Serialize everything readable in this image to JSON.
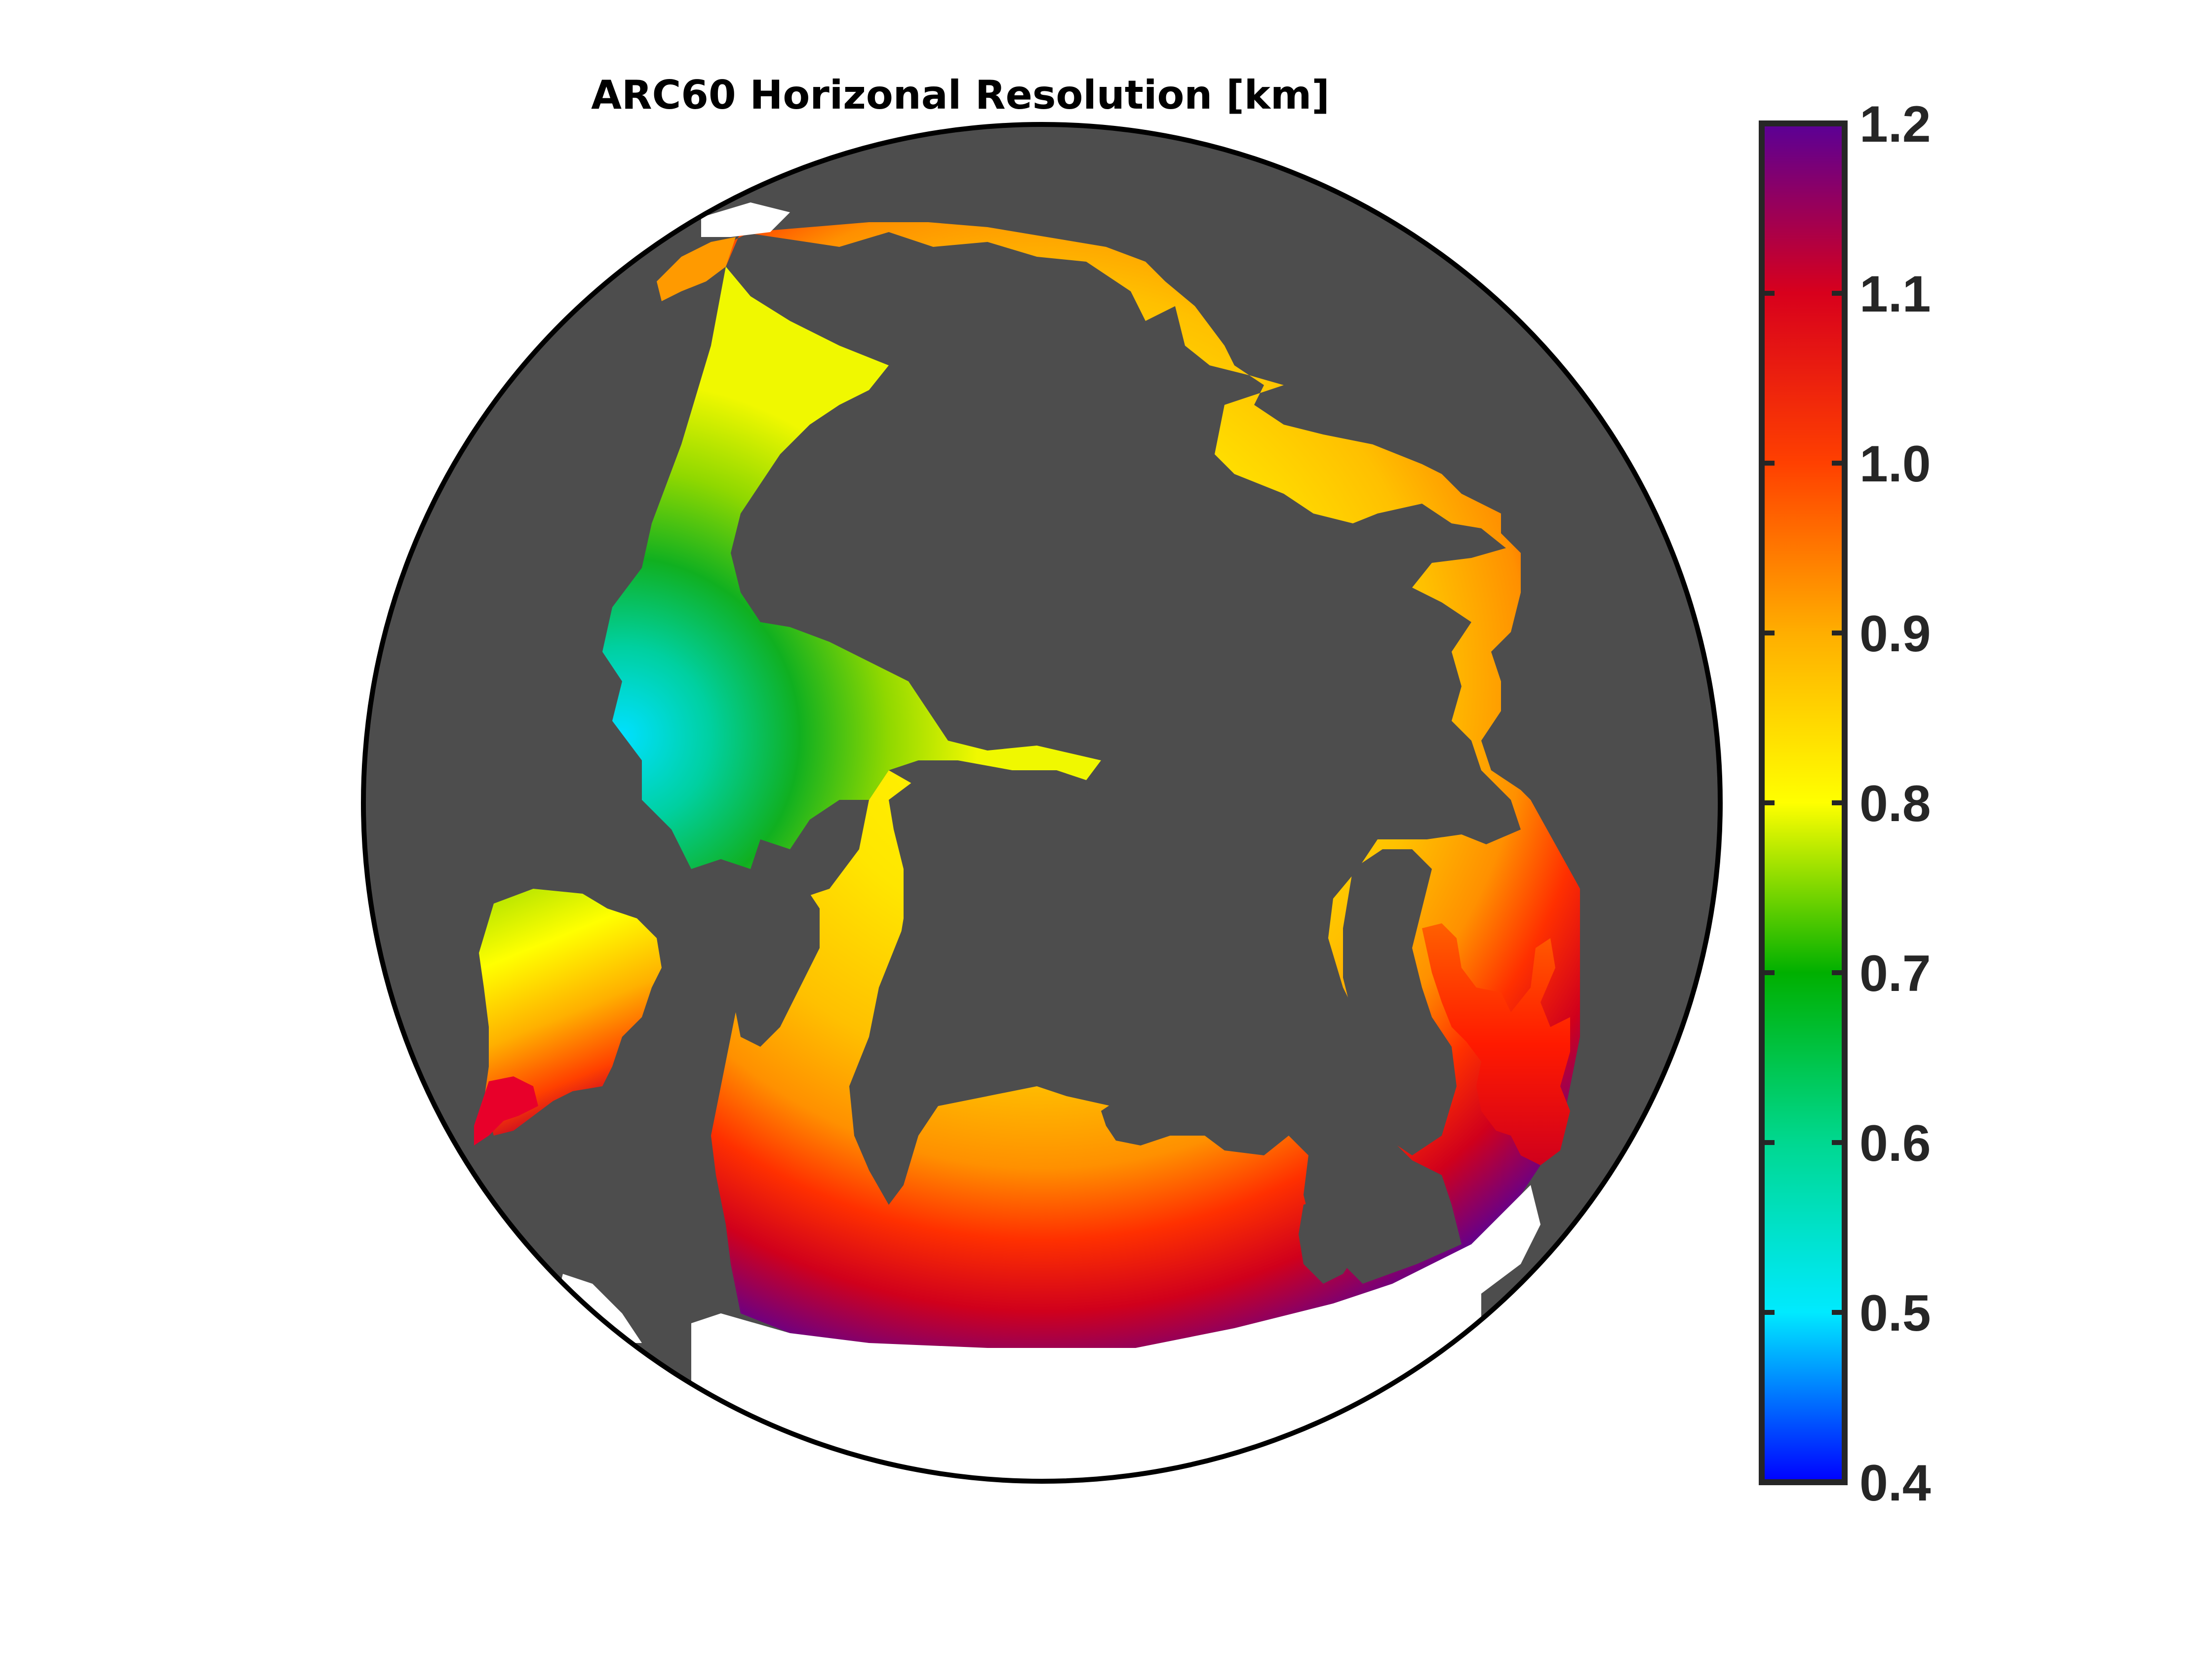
{
  "title": "ARC60 Horizonal Resolution [km]",
  "colors": {
    "land": "#4d4d4d",
    "outside_domain": "#ffffff",
    "frame": "#000000",
    "tick_text": "#262626"
  },
  "colorbar": {
    "min": 0.4,
    "max": 1.2,
    "ticks": [
      {
        "value": 0.4,
        "label": "0.4"
      },
      {
        "value": 0.5,
        "label": "0.5"
      },
      {
        "value": 0.6,
        "label": "0.6"
      },
      {
        "value": 0.7,
        "label": "0.7"
      },
      {
        "value": 0.8,
        "label": "0.8"
      },
      {
        "value": 0.9,
        "label": "0.9"
      },
      {
        "value": 1.0,
        "label": "1.0"
      },
      {
        "value": 1.1,
        "label": "1.1"
      },
      {
        "value": 1.2,
        "label": "1.2"
      }
    ],
    "stops": [
      {
        "value": 0.4,
        "color": "#0000ff"
      },
      {
        "value": 0.5,
        "color": "#00eaff"
      },
      {
        "value": 0.6,
        "color": "#00d890"
      },
      {
        "value": 0.7,
        "color": "#00b000"
      },
      {
        "value": 0.8,
        "color": "#ffff00"
      },
      {
        "value": 0.9,
        "color": "#ffae00"
      },
      {
        "value": 1.0,
        "color": "#ff4000"
      },
      {
        "value": 1.1,
        "color": "#d8001c"
      },
      {
        "value": 1.2,
        "color": "#5a0096"
      }
    ]
  },
  "map_fields": {
    "ocean_colors": [
      "#ffee00",
      "#ffff00",
      "#e0f000",
      "#10b020",
      "#00e8d0",
      "#00a0ff",
      "#ffc000",
      "#ff7a00",
      "#ff2000",
      "#d0001c",
      "#8c0060",
      "#5a0096"
    ]
  }
}
